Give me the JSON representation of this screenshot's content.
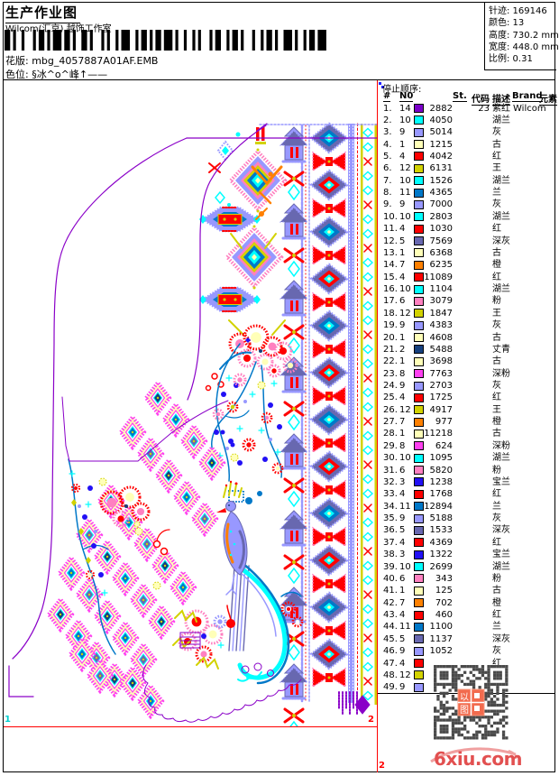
{
  "header": {
    "title": "生产作业图",
    "company": "Wilcom(汇京) 越饰工作室",
    "pattern_label": "花版:",
    "pattern_value": "mbg_4057887A01AF.EMB",
    "colorway_label": "色位:",
    "colorway_value": "§冰^o^峰↑——",
    "stats": [
      {
        "label": "针迹:",
        "value": "169146"
      },
      {
        "label": "颜色:",
        "value": "13"
      },
      {
        "label": "高度:",
        "value": "730.2 mm"
      },
      {
        "label": "宽度:",
        "value": "448.0 mm"
      },
      {
        "label": "比例:",
        "value": "0.31"
      }
    ]
  },
  "sequence_panel": {
    "title": "停止顺序:",
    "columns": [
      "#",
      "N0",
      "St.",
      "代码",
      "描述",
      "Brand",
      "元素"
    ],
    "rows": [
      {
        "seq": "1.",
        "needle": "14",
        "st": "2882",
        "code": "23",
        "desc": "紫红",
        "brand": "Wilcom"
      },
      {
        "seq": "2.",
        "needle": "10",
        "st": "4050",
        "code": "",
        "desc": "湖兰",
        "brand": ""
      },
      {
        "seq": "3.",
        "needle": "9",
        "st": "5014",
        "code": "",
        "desc": "灰",
        "brand": ""
      },
      {
        "seq": "4.",
        "needle": "1",
        "st": "1215",
        "code": "",
        "desc": "古",
        "brand": ""
      },
      {
        "seq": "5.",
        "needle": "4",
        "st": "4042",
        "code": "",
        "desc": "红",
        "brand": ""
      },
      {
        "seq": "6.",
        "needle": "12",
        "st": "6131",
        "code": "",
        "desc": "王",
        "brand": ""
      },
      {
        "seq": "7.",
        "needle": "10",
        "st": "1526",
        "code": "",
        "desc": "湖兰",
        "brand": ""
      },
      {
        "seq": "8.",
        "needle": "11",
        "st": "4365",
        "code": "",
        "desc": "兰",
        "brand": ""
      },
      {
        "seq": "9.",
        "needle": "9",
        "st": "7000",
        "code": "",
        "desc": "灰",
        "brand": ""
      },
      {
        "seq": "10.",
        "needle": "10",
        "st": "2803",
        "code": "",
        "desc": "湖兰",
        "brand": ""
      },
      {
        "seq": "11.",
        "needle": "4",
        "st": "1030",
        "code": "",
        "desc": "红",
        "brand": ""
      },
      {
        "seq": "12.",
        "needle": "5",
        "st": "7569",
        "code": "",
        "desc": "深灰",
        "brand": ""
      },
      {
        "seq": "13.",
        "needle": "1",
        "st": "6368",
        "code": "",
        "desc": "古",
        "brand": ""
      },
      {
        "seq": "14.",
        "needle": "7",
        "st": "6235",
        "code": "",
        "desc": "橙",
        "brand": ""
      },
      {
        "seq": "15.",
        "needle": "4",
        "st": "11089",
        "code": "",
        "desc": "红",
        "brand": ""
      },
      {
        "seq": "16.",
        "needle": "10",
        "st": "1104",
        "code": "",
        "desc": "湖兰",
        "brand": ""
      },
      {
        "seq": "17.",
        "needle": "6",
        "st": "3079",
        "code": "",
        "desc": "粉",
        "brand": ""
      },
      {
        "seq": "18.",
        "needle": "12",
        "st": "1847",
        "code": "",
        "desc": "王",
        "brand": ""
      },
      {
        "seq": "19.",
        "needle": "9",
        "st": "4383",
        "code": "",
        "desc": "灰",
        "brand": ""
      },
      {
        "seq": "20.",
        "needle": "1",
        "st": "4608",
        "code": "",
        "desc": "古",
        "brand": ""
      },
      {
        "seq": "21.",
        "needle": "2",
        "st": "5488",
        "code": "",
        "desc": "丈青",
        "brand": ""
      },
      {
        "seq": "22.",
        "needle": "1",
        "st": "3698",
        "code": "",
        "desc": "古",
        "brand": ""
      },
      {
        "seq": "23.",
        "needle": "8",
        "st": "7763",
        "code": "",
        "desc": "深粉",
        "brand": ""
      },
      {
        "seq": "24.",
        "needle": "9",
        "st": "2703",
        "code": "",
        "desc": "灰",
        "brand": ""
      },
      {
        "seq": "25.",
        "needle": "4",
        "st": "1725",
        "code": "",
        "desc": "红",
        "brand": ""
      },
      {
        "seq": "26.",
        "needle": "12",
        "st": "4917",
        "code": "",
        "desc": "王",
        "brand": ""
      },
      {
        "seq": "27.",
        "needle": "7",
        "st": "977",
        "code": "",
        "desc": "橙",
        "brand": ""
      },
      {
        "seq": "28.",
        "needle": "1",
        "st": "11218",
        "code": "",
        "desc": "古",
        "brand": ""
      },
      {
        "seq": "29.",
        "needle": "8",
        "st": "624",
        "code": "",
        "desc": "深粉",
        "brand": ""
      },
      {
        "seq": "30.",
        "needle": "10",
        "st": "1095",
        "code": "",
        "desc": "湖兰",
        "brand": ""
      },
      {
        "seq": "31.",
        "needle": "6",
        "st": "5820",
        "code": "",
        "desc": "粉",
        "brand": ""
      },
      {
        "seq": "32.",
        "needle": "3",
        "st": "1238",
        "code": "",
        "desc": "宝兰",
        "brand": ""
      },
      {
        "seq": "33.",
        "needle": "4",
        "st": "1768",
        "code": "",
        "desc": "红",
        "brand": ""
      },
      {
        "seq": "34.",
        "needle": "11",
        "st": "12894",
        "code": "",
        "desc": "兰",
        "brand": ""
      },
      {
        "seq": "35.",
        "needle": "9",
        "st": "5188",
        "code": "",
        "desc": "灰",
        "brand": ""
      },
      {
        "seq": "36.",
        "needle": "5",
        "st": "1533",
        "code": "",
        "desc": "深灰",
        "brand": ""
      },
      {
        "seq": "37.",
        "needle": "4",
        "st": "4369",
        "code": "",
        "desc": "红",
        "brand": ""
      },
      {
        "seq": "38.",
        "needle": "3",
        "st": "1322",
        "code": "",
        "desc": "宝兰",
        "brand": ""
      },
      {
        "seq": "39.",
        "needle": "10",
        "st": "2699",
        "code": "",
        "desc": "湖兰",
        "brand": ""
      },
      {
        "seq": "40.",
        "needle": "6",
        "st": "343",
        "code": "",
        "desc": "粉",
        "brand": ""
      },
      {
        "seq": "41.",
        "needle": "1",
        "st": "125",
        "code": "",
        "desc": "古",
        "brand": ""
      },
      {
        "seq": "42.",
        "needle": "7",
        "st": "702",
        "code": "",
        "desc": "橙",
        "brand": ""
      },
      {
        "seq": "43.",
        "needle": "4",
        "st": "460",
        "code": "",
        "desc": "红",
        "brand": ""
      },
      {
        "seq": "44.",
        "needle": "11",
        "st": "1100",
        "code": "",
        "desc": "兰",
        "brand": ""
      },
      {
        "seq": "45.",
        "needle": "5",
        "st": "1137",
        "code": "",
        "desc": "深灰",
        "brand": ""
      },
      {
        "seq": "46.",
        "needle": "9",
        "st": "1052",
        "code": "",
        "desc": "灰",
        "brand": ""
      },
      {
        "seq": "47.",
        "needle": "4",
        "st": "",
        "code": "",
        "desc": "红",
        "brand": ""
      },
      {
        "seq": "48.",
        "needle": "12",
        "st": "",
        "code": "",
        "desc": "",
        "brand": ""
      },
      {
        "seq": "49.",
        "needle": "9",
        "st": "",
        "code": "",
        "desc": "",
        "brand": ""
      }
    ],
    "palette": {
      "1": "#FFFFB8",
      "2": "#16407E",
      "3": "#2210F5",
      "4": "#FF0000",
      "5": "#6868B0",
      "6": "#FF80C0",
      "7": "#FF8000",
      "8": "#FF40F0",
      "9": "#9898FF",
      "10": "#00FFFF",
      "11": "#0078C8",
      "12": "#D2D200",
      "14": "#7A00C8"
    }
  },
  "drawing": {
    "markers": {
      "left": "1",
      "right": "2",
      "corner": "2"
    },
    "outline_color": "#8A00C8",
    "rule_color": "#FF0000"
  },
  "watermark": {
    "stamp": "以图",
    "logo": "6xiu.com",
    "logo_color": "#E25050"
  }
}
